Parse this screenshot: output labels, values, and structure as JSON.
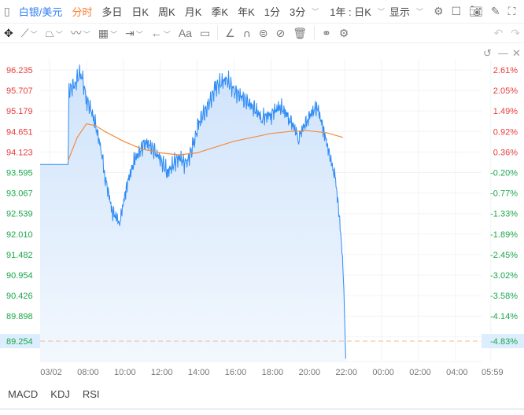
{
  "toolbar": {
    "symbol": "白银/美元",
    "periods": [
      "分时",
      "多日",
      "日K",
      "周K",
      "月K",
      "季K",
      "年K",
      "1分",
      "3分"
    ],
    "active_period": "分时",
    "range": "1年 : 日K",
    "display": "显示"
  },
  "drawing_tools": [
    "move-icon",
    "line-icon",
    "polyline-icon",
    "wave-icon",
    "fib-icon",
    "measure-icon",
    "arrow-icon",
    "text-icon",
    "comment-icon",
    "angle-icon",
    "magnet-icon",
    "lock-icon",
    "hide-icon",
    "trash-icon",
    "compare-icon",
    "settings-icon"
  ],
  "drawing_text_tool": "Aa",
  "indicators": [
    "MACD",
    "KDJ",
    "RSI"
  ],
  "colors": {
    "line": "#2f8cf5",
    "average": "#f28c3c",
    "up": "#e83b3b",
    "down": "#1aa64a",
    "accent": "#2f7cf6"
  },
  "chart_data": {
    "type": "area",
    "y_ticks": [
      "96.235",
      "95.707",
      "95.179",
      "94.651",
      "94.123",
      "93.595",
      "93.067",
      "92.539",
      "92.010",
      "91.482",
      "90.954",
      "90.426",
      "89.898"
    ],
    "pct_ticks": [
      "2.61%",
      "2.05%",
      "1.49%",
      "0.92%",
      "0.36%",
      "-0.20%",
      "-0.77%",
      "-1.33%",
      "-1.89%",
      "-2.45%",
      "-3.02%",
      "-3.58%",
      "-4.14%"
    ],
    "x_ticks": [
      "03/02",
      "08:00",
      "10:00",
      "12:00",
      "14:00",
      "16:00",
      "18:00",
      "20:00",
      "22:00",
      "00:00",
      "02:00",
      "04:00",
      "05:59"
    ],
    "ylim": [
      88.7,
      96.6
    ],
    "current_price": "89.254",
    "current_pct": "-4.83%",
    "price": [
      [
        5.5,
        93.8
      ],
      [
        7.0,
        93.8
      ],
      [
        7.05,
        95.7
      ],
      [
        7.4,
        95.9
      ],
      [
        7.7,
        96.2
      ],
      [
        8.0,
        95.5
      ],
      [
        8.4,
        95.0
      ],
      [
        8.8,
        94.2
      ],
      [
        9.0,
        93.5
      ],
      [
        9.4,
        92.6
      ],
      [
        9.8,
        92.3
      ],
      [
        10.2,
        93.3
      ],
      [
        10.6,
        93.9
      ],
      [
        11.2,
        94.4
      ],
      [
        11.8,
        94.1
      ],
      [
        12.4,
        93.6
      ],
      [
        13.0,
        94.0
      ],
      [
        13.4,
        93.8
      ],
      [
        13.8,
        94.3
      ],
      [
        14.1,
        94.9
      ],
      [
        14.6,
        95.3
      ],
      [
        15.0,
        95.8
      ],
      [
        15.6,
        96.0
      ],
      [
        16.0,
        95.7
      ],
      [
        16.5,
        95.5
      ],
      [
        17.0,
        95.3
      ],
      [
        17.5,
        95.0
      ],
      [
        18.0,
        95.1
      ],
      [
        18.5,
        95.3
      ],
      [
        19.0,
        95.0
      ],
      [
        19.5,
        94.5
      ],
      [
        20.0,
        95.0
      ],
      [
        20.5,
        95.3
      ],
      [
        20.9,
        94.6
      ],
      [
        21.2,
        94.0
      ],
      [
        21.5,
        93.4
      ],
      [
        21.7,
        92.5
      ],
      [
        21.85,
        91.6
      ],
      [
        21.95,
        90.6
      ],
      [
        22.05,
        88.8
      ]
    ],
    "average": [
      [
        7.0,
        93.9
      ],
      [
        7.5,
        94.5
      ],
      [
        8.0,
        94.85
      ],
      [
        8.5,
        94.8
      ],
      [
        9.0,
        94.65
      ],
      [
        10.0,
        94.4
      ],
      [
        11.0,
        94.2
      ],
      [
        12.0,
        94.1
      ],
      [
        13.0,
        94.05
      ],
      [
        14.0,
        94.1
      ],
      [
        15.0,
        94.25
      ],
      [
        16.0,
        94.4
      ],
      [
        17.0,
        94.5
      ],
      [
        18.0,
        94.6
      ],
      [
        19.0,
        94.65
      ],
      [
        20.0,
        94.67
      ],
      [
        21.0,
        94.62
      ],
      [
        21.9,
        94.5
      ]
    ]
  }
}
